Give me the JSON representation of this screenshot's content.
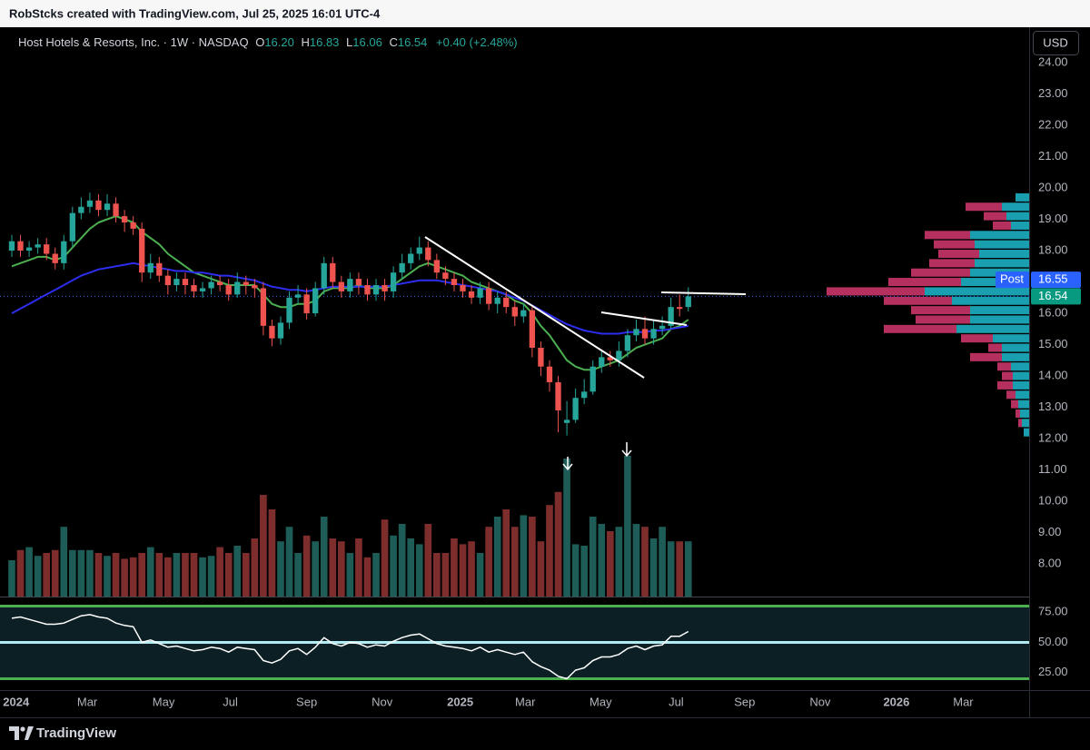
{
  "chart_data": {
    "type": "candlestick",
    "watermark": "RobStcks created with TradingView.com, Jul 25, 2025 16:01 UTC-4",
    "legend": {
      "name": "Host Hotels & Resorts, Inc. · 1W · NASDAQ",
      "fields": [
        {
          "key": "O",
          "value": "16.20"
        },
        {
          "key": "H",
          "value": "16.83"
        },
        {
          "key": "L",
          "value": "16.06"
        },
        {
          "key": "C",
          "value": "16.54"
        }
      ],
      "change": "+0.40 (+2.48%)"
    },
    "currency": "USD",
    "footer": "TradingView",
    "up_color": "#26a69a",
    "down_color": "#ef5350",
    "xlim": [
      -1.36,
      117.3
    ],
    "xticks": [
      {
        "value": 0.5,
        "label": "2024"
      },
      {
        "value": 8.7,
        "label": "Mar"
      },
      {
        "value": 17.5,
        "label": "May"
      },
      {
        "value": 25.2,
        "label": "Jul"
      },
      {
        "value": 34.0,
        "label": "Sep"
      },
      {
        "value": 42.7,
        "label": "Nov"
      },
      {
        "value": 51.7,
        "label": "2025"
      },
      {
        "value": 59.2,
        "label": "Mar"
      },
      {
        "value": 67.9,
        "label": "May"
      },
      {
        "value": 76.6,
        "label": "Jul"
      },
      {
        "value": 84.5,
        "label": "Sep"
      },
      {
        "value": 93.2,
        "label": "Nov"
      },
      {
        "value": 102.0,
        "label": "2026"
      },
      {
        "value": 109.7,
        "label": "Mar"
      }
    ],
    "ylim": [
      6.96,
      25.13
    ],
    "yticks": [
      {
        "value": 8,
        "label": "8.00"
      },
      {
        "value": 9,
        "label": "9.00"
      },
      {
        "value": 10,
        "label": "10.00"
      },
      {
        "value": 11,
        "label": "11.00"
      },
      {
        "value": 12,
        "label": "12.00"
      },
      {
        "value": 13,
        "label": "13.00"
      },
      {
        "value": 14,
        "label": "14.00"
      },
      {
        "value": 15,
        "label": "15.00"
      },
      {
        "value": 16,
        "label": "16.00"
      },
      {
        "value": 17,
        "label": "17.00"
      },
      {
        "value": 18,
        "label": "18.00"
      },
      {
        "value": 19,
        "label": "19.00"
      },
      {
        "value": 20,
        "label": "20.00"
      },
      {
        "value": 21,
        "label": "21.00"
      },
      {
        "value": 22,
        "label": "22.00"
      },
      {
        "value": 23,
        "label": "23.00"
      },
      {
        "value": 24,
        "label": "24.00"
      }
    ],
    "open": [
      18.0,
      18.3,
      18.0,
      18.1,
      18.2,
      17.9,
      17.6,
      18.3,
      19.2,
      19.4,
      19.6,
      19.3,
      19.5,
      19.1,
      18.9,
      18.7,
      17.3,
      17.6,
      17.2,
      16.9,
      17.1,
      16.9,
      16.7,
      16.8,
      17.0,
      16.9,
      16.6,
      17.0,
      16.9,
      16.8,
      15.6,
      15.2,
      15.7,
      16.5,
      16.6,
      16.0,
      16.8,
      17.6,
      17.0,
      16.7,
      17.1,
      16.9,
      16.6,
      16.9,
      16.7,
      17.3,
      17.6,
      17.9,
      18.1,
      17.7,
      17.3,
      17.1,
      16.9,
      16.7,
      16.5,
      16.8,
      16.3,
      16.5,
      16.2,
      15.9,
      16.1,
      14.9,
      14.3,
      13.8,
      12.5,
      12.6,
      13.3,
      13.5,
      14.3,
      14.6,
      14.5,
      14.8,
      15.3,
      15.5,
      15.2,
      15.5,
      15.6,
      16.2,
      16.2
    ],
    "high": [
      18.5,
      18.5,
      18.3,
      18.4,
      18.4,
      18.1,
      18.5,
      19.4,
      19.7,
      19.85,
      19.8,
      19.8,
      19.7,
      19.3,
      19.1,
      18.9,
      17.9,
      17.8,
      17.4,
      17.3,
      17.3,
      17.1,
      17.0,
      17.2,
      17.2,
      17.1,
      17.3,
      17.2,
      17.1,
      17.0,
      15.8,
      15.9,
      16.7,
      16.9,
      16.8,
      17.0,
      17.8,
      17.8,
      17.2,
      17.3,
      17.3,
      17.1,
      17.1,
      17.1,
      17.5,
      17.9,
      18.1,
      18.45,
      18.3,
      17.9,
      17.5,
      17.3,
      17.1,
      16.9,
      17.0,
      17.0,
      16.7,
      16.7,
      16.4,
      16.3,
      16.2,
      15.1,
      14.5,
      14.0,
      13.2,
      13.6,
      13.9,
      14.5,
      14.8,
      14.8,
      15.1,
      15.5,
      15.8,
      15.9,
      15.8,
      15.9,
      16.5,
      16.6,
      16.83
    ],
    "low": [
      17.8,
      17.8,
      17.8,
      17.9,
      17.7,
      17.4,
      17.4,
      18.1,
      19.0,
      19.2,
      19.1,
      19.1,
      18.9,
      18.6,
      18.5,
      17.0,
      17.1,
      17.0,
      16.6,
      16.7,
      16.6,
      16.5,
      16.5,
      16.6,
      16.7,
      16.4,
      16.5,
      16.6,
      16.5,
      15.3,
      14.95,
      15.0,
      15.5,
      16.3,
      15.8,
      15.9,
      16.6,
      16.8,
      16.5,
      16.5,
      16.6,
      16.4,
      16.4,
      16.4,
      16.5,
      17.1,
      17.4,
      17.7,
      17.5,
      17.1,
      16.9,
      16.7,
      16.5,
      16.3,
      16.3,
      16.1,
      16.0,
      16.0,
      15.6,
      15.7,
      14.6,
      14.0,
      13.5,
      12.2,
      12.1,
      12.5,
      13.1,
      13.4,
      14.1,
      14.3,
      14.3,
      14.6,
      15.1,
      15.0,
      15.0,
      15.3,
      15.5,
      15.9,
      16.06
    ],
    "close": [
      18.3,
      18.0,
      18.1,
      18.2,
      17.9,
      17.6,
      18.3,
      19.2,
      19.4,
      19.6,
      19.3,
      19.5,
      19.1,
      18.9,
      18.7,
      17.3,
      17.6,
      17.2,
      16.9,
      17.1,
      16.9,
      16.7,
      16.8,
      17.0,
      16.9,
      16.6,
      17.0,
      16.9,
      16.8,
      15.6,
      15.2,
      15.7,
      16.5,
      16.6,
      16.0,
      16.8,
      17.6,
      17.0,
      16.7,
      17.1,
      16.9,
      16.6,
      16.9,
      16.7,
      17.3,
      17.6,
      17.9,
      18.1,
      17.7,
      17.3,
      17.1,
      16.9,
      16.7,
      16.5,
      16.8,
      16.3,
      16.5,
      16.2,
      15.9,
      16.1,
      14.9,
      14.3,
      13.8,
      12.9,
      12.6,
      13.3,
      13.5,
      14.3,
      14.6,
      14.5,
      14.8,
      15.3,
      15.5,
      15.2,
      15.5,
      15.6,
      16.2,
      16.14,
      16.54
    ],
    "volume_lim": [
      0,
      100
    ],
    "volume_up_color": "#1d5c57",
    "volume_down_color": "#7e2d2d",
    "volume": [
      25,
      32,
      34,
      28,
      30,
      32,
      48,
      32,
      32,
      32,
      30,
      28,
      30,
      26,
      27,
      30,
      34,
      30,
      27,
      30,
      30,
      30,
      27,
      28,
      34,
      30,
      35,
      30,
      40,
      70,
      60,
      38,
      48,
      30,
      42,
      38,
      55,
      40,
      38,
      30,
      40,
      27,
      30,
      53,
      42,
      50,
      40,
      36,
      50,
      30,
      30,
      40,
      36,
      38,
      30,
      48,
      55,
      60,
      48,
      56,
      55,
      38,
      63,
      72,
      95,
      36,
      35,
      55,
      50,
      45,
      48,
      97,
      50,
      48,
      40,
      48,
      38,
      38,
      38
    ],
    "moving_averages": [
      {
        "color": "#4caf50",
        "values": [
          17.5,
          17.6,
          17.7,
          17.8,
          17.8,
          17.7,
          17.8,
          18.1,
          18.4,
          18.7,
          18.9,
          19.0,
          19.1,
          19.0,
          18.9,
          18.6,
          18.4,
          18.2,
          17.9,
          17.7,
          17.5,
          17.3,
          17.2,
          17.1,
          17.0,
          16.9,
          16.9,
          16.9,
          16.9,
          16.6,
          16.3,
          16.2,
          16.2,
          16.3,
          16.3,
          16.4,
          16.7,
          16.8,
          16.8,
          16.8,
          16.9,
          16.8,
          16.8,
          16.8,
          16.9,
          17.1,
          17.3,
          17.5,
          17.6,
          17.5,
          17.4,
          17.3,
          17.2,
          17.0,
          16.9,
          16.8,
          16.7,
          16.6,
          16.4,
          16.3,
          16.0,
          15.6,
          15.3,
          14.9,
          14.5,
          14.3,
          14.2,
          14.2,
          14.3,
          14.4,
          14.5,
          14.7,
          14.9,
          15.0,
          15.1,
          15.2,
          15.5,
          15.6,
          15.8
        ]
      },
      {
        "color": "#2d2df0",
        "values": [
          16.0,
          16.15,
          16.3,
          16.45,
          16.6,
          16.75,
          16.9,
          17.05,
          17.2,
          17.3,
          17.4,
          17.45,
          17.5,
          17.55,
          17.6,
          17.55,
          17.5,
          17.45,
          17.4,
          17.35,
          17.35,
          17.3,
          17.3,
          17.25,
          17.2,
          17.2,
          17.15,
          17.1,
          17.05,
          16.95,
          16.85,
          16.8,
          16.75,
          16.75,
          16.7,
          16.75,
          16.8,
          16.85,
          16.85,
          16.85,
          16.85,
          16.85,
          16.85,
          16.85,
          16.9,
          16.95,
          17.0,
          17.05,
          17.05,
          17.05,
          17.0,
          16.95,
          16.9,
          16.85,
          16.8,
          16.75,
          16.7,
          16.6,
          16.5,
          16.4,
          16.25,
          16.1,
          15.95,
          15.8,
          15.65,
          15.55,
          15.45,
          15.4,
          15.35,
          15.35,
          15.35,
          15.4,
          15.4,
          15.4,
          15.45,
          15.45,
          15.5,
          15.55,
          15.6
        ]
      }
    ],
    "last_price": 16.54,
    "last_color": "#089981",
    "post_label": "Post",
    "post_price": 16.55,
    "post_color": "#2962ff",
    "profile": {
      "lim": [
        0,
        225
      ],
      "up_color": "#1a9fb0",
      "down_color": "#b5305f",
      "prices": [
        12.2,
        12.5,
        12.8,
        13.1,
        13.4,
        13.7,
        14.0,
        14.3,
        14.6,
        14.9,
        15.2,
        15.5,
        15.8,
        16.1,
        16.4,
        16.7,
        17.0,
        17.3,
        17.6,
        17.9,
        18.2,
        18.5,
        18.8,
        19.1,
        19.4,
        19.7
      ],
      "up": [
        6,
        8,
        10,
        12,
        15,
        18,
        18,
        20,
        30,
        30,
        40,
        80,
        65,
        65,
        85,
        115,
        75,
        65,
        60,
        55,
        60,
        65,
        20,
        25,
        30,
        15
      ],
      "down": [
        0,
        4,
        5,
        8,
        10,
        17,
        12,
        15,
        35,
        15,
        35,
        80,
        60,
        65,
        75,
        108,
        80,
        65,
        50,
        45,
        45,
        50,
        20,
        25,
        40,
        0
      ]
    },
    "rsi": {
      "color": "#ffffff",
      "ylim": [
        10.6,
        87.9
      ],
      "yticks": [
        {
          "value": 25,
          "label": "25.00"
        },
        {
          "value": 50,
          "label": "50.00"
        },
        {
          "value": 75,
          "label": "75.00"
        }
      ],
      "levels": [
        20,
        50,
        80
      ],
      "level_colors": [
        "#4caf50",
        "#b2ebf2",
        "#4caf50"
      ],
      "values": [
        70,
        71,
        69,
        67,
        65,
        65,
        66,
        69,
        72,
        73,
        71,
        70,
        66,
        64,
        63,
        50,
        52,
        49,
        46,
        47,
        45,
        43,
        44,
        46,
        45,
        42,
        46,
        45,
        44,
        35,
        33,
        36,
        43,
        45,
        40,
        46,
        54,
        49,
        47,
        50,
        49,
        46,
        48,
        47,
        51,
        54,
        56,
        57,
        53,
        49,
        47,
        46,
        45,
        43,
        46,
        42,
        44,
        42,
        40,
        42,
        34,
        30,
        27,
        22,
        20,
        27,
        29,
        35,
        38,
        38,
        40,
        45,
        47,
        44,
        47,
        48,
        55,
        55,
        59
      ]
    }
  }
}
